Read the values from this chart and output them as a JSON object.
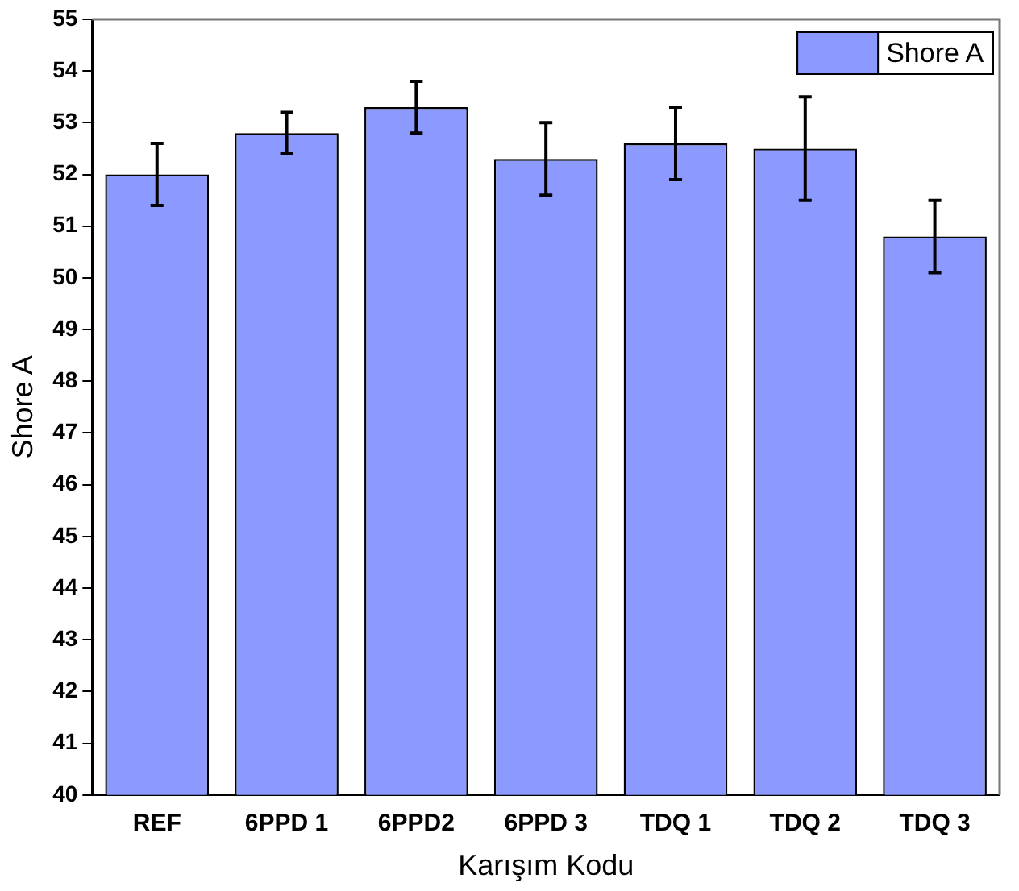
{
  "chart_data": {
    "type": "bar",
    "xlabel": "Karışım Kodu",
    "ylabel": "Shore A",
    "categories": [
      "REF",
      "6PPD 1",
      "6PPD2",
      "6PPD 3",
      "TDQ 1",
      "TDQ 2",
      "TDQ 3"
    ],
    "series": [
      {
        "name": "Shore A",
        "color": "#8c99ff",
        "values": [
          52.0,
          52.8,
          53.3,
          52.3,
          52.6,
          52.5,
          50.8
        ],
        "errors": [
          0.6,
          0.4,
          0.5,
          0.7,
          0.7,
          1.0,
          0.7
        ]
      }
    ],
    "ylim": [
      40,
      55
    ],
    "yticks": [
      40,
      41,
      42,
      43,
      44,
      45,
      46,
      47,
      48,
      49,
      50,
      51,
      52,
      53,
      54,
      55
    ],
    "grid": false,
    "legend": "top right"
  }
}
